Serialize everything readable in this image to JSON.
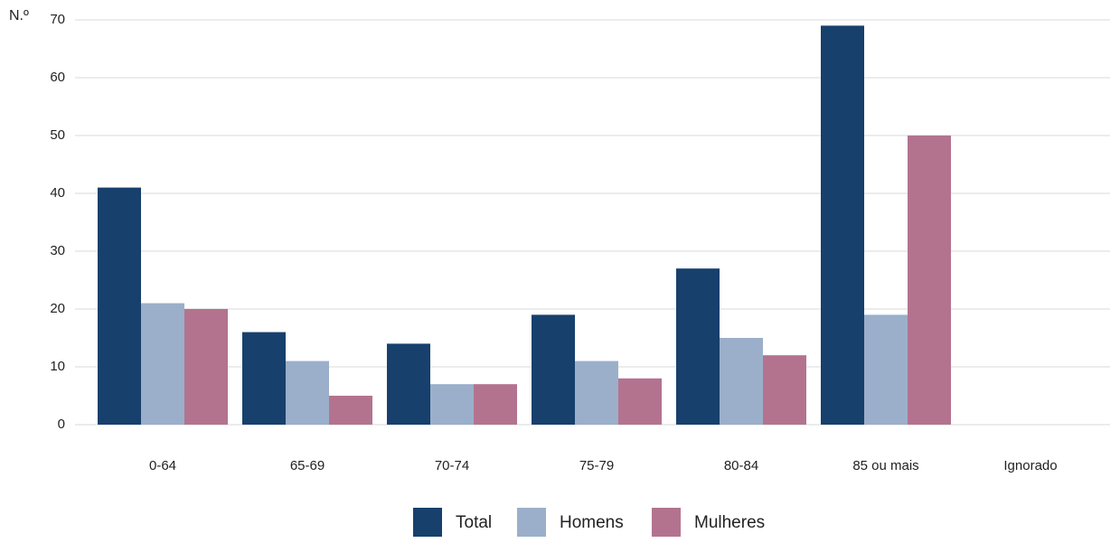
{
  "chart_data": {
    "type": "bar",
    "y_label": "N.º",
    "categories": [
      "0-64",
      "65-69",
      "70-74",
      "75-79",
      "80-84",
      "85 ou mais",
      "Ignorado"
    ],
    "series": [
      {
        "name": "Total",
        "color": "#17406d",
        "values": [
          41,
          16,
          14,
          19,
          27,
          69,
          0
        ]
      },
      {
        "name": "Homens",
        "color": "#9bafca",
        "values": [
          21,
          11,
          7,
          11,
          15,
          19,
          0
        ]
      },
      {
        "name": "Mulheres",
        "color": "#b3738f",
        "values": [
          20,
          5,
          7,
          8,
          12,
          50,
          0
        ]
      }
    ],
    "ylim": [
      0,
      70
    ],
    "yticks": [
      0,
      10,
      20,
      30,
      40,
      50,
      60,
      70
    ],
    "grid": true
  }
}
